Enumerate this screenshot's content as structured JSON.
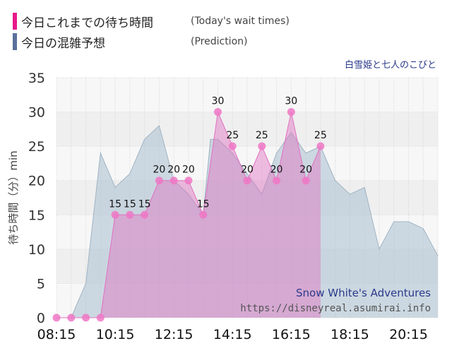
{
  "legend": {
    "today": {
      "label": "今日これまでの待ち時間",
      "note": "(Today's wait times)",
      "color": "#e6198a"
    },
    "prediction": {
      "label": "今日の混雑予想",
      "note": "(Prediction)",
      "color": "#5a6f9a"
    }
  },
  "subtitle": "白雪姫と七人のこびと",
  "chart_data": {
    "type": "area",
    "ylabel": "待ち時間（分）min",
    "ylim": [
      0,
      35
    ],
    "y_ticks": [
      0,
      5,
      10,
      15,
      20,
      25,
      30,
      35
    ],
    "x_tick_labels": [
      "08:15",
      "10:15",
      "12:15",
      "14:15",
      "16:15",
      "18:15",
      "20:15"
    ],
    "grid": true,
    "series": [
      {
        "key": "prediction",
        "color": "#a9bfd0",
        "x": [
          "08:15",
          "08:45",
          "09:15",
          "09:45",
          "10:15",
          "10:45",
          "11:15",
          "11:45",
          "12:15",
          "12:45",
          "13:15",
          "13:30",
          "13:45",
          "14:00",
          "14:15",
          "14:45",
          "15:15",
          "15:45",
          "16:15",
          "16:45",
          "17:15",
          "17:45",
          "18:15",
          "18:45",
          "19:15",
          "19:45",
          "20:15",
          "20:45",
          "21:15"
        ],
        "values": [
          0,
          0,
          5,
          24,
          19,
          21,
          26,
          28,
          20,
          18,
          15,
          26,
          26,
          25,
          24,
          21,
          18,
          24,
          27,
          24,
          25,
          20,
          18,
          19,
          10,
          14,
          14,
          13,
          9
        ]
      },
      {
        "key": "today",
        "color": "#e070c0",
        "x": [
          "08:15",
          "08:45",
          "09:15",
          "09:45",
          "10:15",
          "10:45",
          "11:15",
          "11:45",
          "12:15",
          "12:45",
          "13:15",
          "13:45",
          "14:15",
          "14:45",
          "15:15",
          "15:45",
          "16:15",
          "16:45",
          "17:15"
        ],
        "values": [
          0,
          0,
          0,
          0,
          15,
          15,
          15,
          20,
          20,
          20,
          15,
          30,
          25,
          20,
          25,
          20,
          30,
          20,
          25
        ],
        "labels": [
          "",
          "",
          "",
          "",
          "15",
          "15",
          "15",
          "20",
          "20",
          "20",
          "15",
          "30",
          "25",
          "20",
          "25",
          "20",
          "30",
          "20",
          "25"
        ]
      }
    ]
  },
  "watermark": {
    "title": "Snow White's Adventures",
    "url": "https://disneyreal.asumirai.info"
  }
}
